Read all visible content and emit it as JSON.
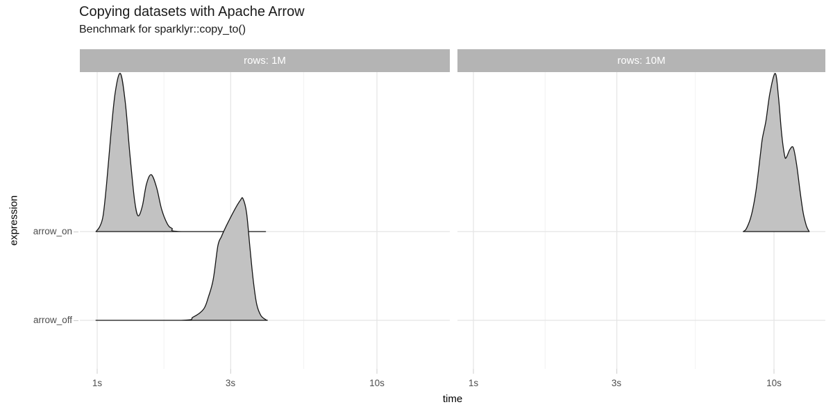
{
  "header": {
    "title": "Copying datasets with Apache Arrow",
    "subtitle": "Benchmark for sparklyr::copy_to()"
  },
  "facets": [
    {
      "label": "rows: 1M"
    },
    {
      "label": "rows: 10M"
    }
  ],
  "axes": {
    "x_label": "time",
    "y_label": "expression",
    "x_tick_labels": [
      "1s",
      "3s",
      "10s"
    ],
    "y_tick_labels": [
      "arrow_on",
      "arrow_off"
    ]
  },
  "colors": {
    "strip_bg": "#b4b4b4",
    "strip_text": "#ffffff",
    "density_fill": "#c2c2c2",
    "density_stroke": "#141414",
    "grid_major": "#e4e4e4",
    "grid_minor": "#f0f0f0",
    "axis_tick": "#cccccc",
    "tick_label_text": "#4d4d4d",
    "title_text": "#1a1a1a"
  },
  "chart_data": {
    "type": "area",
    "subtype": "density-ridgeline",
    "title": "Copying datasets with Apache Arrow",
    "subtitle": "Benchmark for sparklyr::copy_to()",
    "xlabel": "time",
    "ylabel": "expression",
    "x_scale": "log10 seconds",
    "x_tick_values": [
      1,
      3,
      10
    ],
    "x_minor_tick_values": [
      1.732,
      5.477
    ],
    "facet_labels": [
      "rows: 1M",
      "rows: 10M"
    ],
    "rows": [
      "arrow_on",
      "arrow_off"
    ],
    "height_unit": "density relative to tallest peak = 1.0",
    "grid": true,
    "legend": "none",
    "series": [
      {
        "facet": "rows: 1M",
        "row": "arrow_on",
        "points": [
          [
            0.99,
            0
          ],
          [
            1.02,
            0.03
          ],
          [
            1.05,
            0.1
          ],
          [
            1.08,
            0.3
          ],
          [
            1.12,
            0.62
          ],
          [
            1.16,
            0.88
          ],
          [
            1.21,
            1.0
          ],
          [
            1.26,
            0.82
          ],
          [
            1.31,
            0.48
          ],
          [
            1.36,
            0.2
          ],
          [
            1.4,
            0.1
          ],
          [
            1.45,
            0.16
          ],
          [
            1.5,
            0.3
          ],
          [
            1.56,
            0.36
          ],
          [
            1.63,
            0.28
          ],
          [
            1.7,
            0.14
          ],
          [
            1.78,
            0.05
          ],
          [
            1.85,
            0.02
          ],
          [
            2.0,
            0
          ],
          [
            4.0,
            0
          ]
        ]
      },
      {
        "facet": "rows: 1M",
        "row": "arrow_off",
        "points": [
          [
            0.99,
            0
          ],
          [
            2.0,
            0
          ],
          [
            2.2,
            0.02
          ],
          [
            2.4,
            0.07
          ],
          [
            2.5,
            0.15
          ],
          [
            2.6,
            0.26
          ],
          [
            2.7,
            0.47
          ],
          [
            2.78,
            0.53
          ],
          [
            2.9,
            0.6
          ],
          [
            3.1,
            0.7
          ],
          [
            3.25,
            0.76
          ],
          [
            3.32,
            0.77
          ],
          [
            3.42,
            0.68
          ],
          [
            3.52,
            0.45
          ],
          [
            3.62,
            0.24
          ],
          [
            3.72,
            0.1
          ],
          [
            3.85,
            0.03
          ],
          [
            4.0,
            0.005
          ],
          [
            4.06,
            0
          ]
        ]
      },
      {
        "facet": "rows: 10M",
        "row": "arrow_on",
        "points": [
          [
            7.9,
            0
          ],
          [
            8.1,
            0.02
          ],
          [
            8.4,
            0.1
          ],
          [
            8.7,
            0.25
          ],
          [
            9.0,
            0.48
          ],
          [
            9.15,
            0.59
          ],
          [
            9.4,
            0.7
          ],
          [
            9.7,
            0.88
          ],
          [
            10.1,
            1.0
          ],
          [
            10.35,
            0.85
          ],
          [
            10.6,
            0.62
          ],
          [
            10.85,
            0.48
          ],
          [
            11.0,
            0.47
          ],
          [
            11.3,
            0.52
          ],
          [
            11.6,
            0.53
          ],
          [
            11.9,
            0.42
          ],
          [
            12.2,
            0.26
          ],
          [
            12.5,
            0.12
          ],
          [
            12.8,
            0.04
          ],
          [
            13.0,
            0.01
          ],
          [
            13.1,
            0
          ]
        ]
      },
      {
        "facet": "rows: 10M",
        "row": "arrow_off",
        "points": []
      }
    ]
  }
}
